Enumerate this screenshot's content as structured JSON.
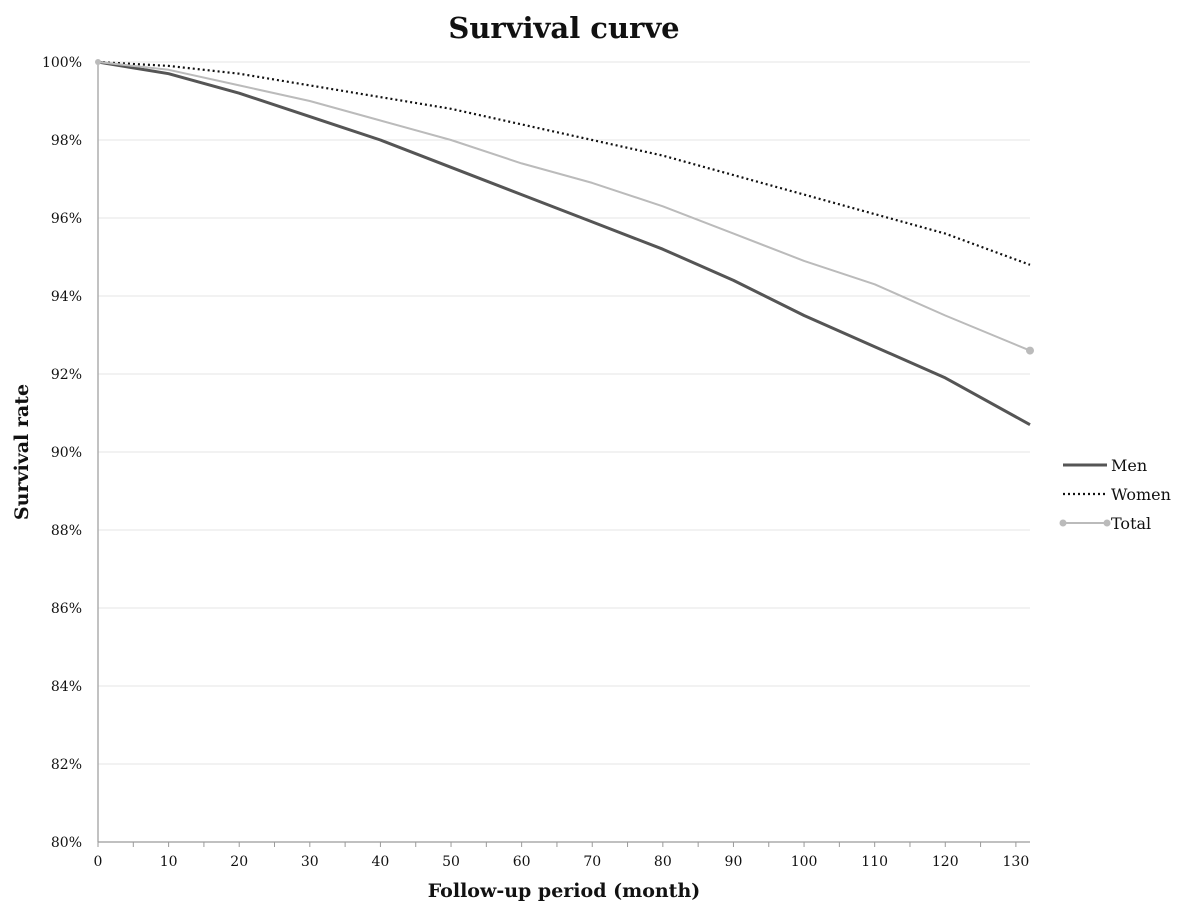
{
  "chart_data": {
    "type": "line",
    "title": "Survival curve",
    "xlabel": "Follow-up period (month)",
    "ylabel": "Survival rate",
    "xlim": [
      0,
      132
    ],
    "ylim": [
      80,
      100
    ],
    "x_ticks": [
      0,
      10,
      20,
      30,
      40,
      50,
      60,
      70,
      80,
      90,
      100,
      110,
      120,
      130
    ],
    "x_tick_labels": [
      "0",
      "10",
      "20",
      "30",
      "40",
      "50",
      "60",
      "70",
      "80",
      "90",
      "100",
      "110",
      "120",
      "130"
    ],
    "y_ticks": [
      80,
      82,
      84,
      86,
      88,
      90,
      92,
      94,
      96,
      98,
      100
    ],
    "y_tick_labels": [
      "80%",
      "82%",
      "84%",
      "86%",
      "88%",
      "90%",
      "92%",
      "94%",
      "96%",
      "98%",
      "100%"
    ],
    "grid": "horizontal",
    "legend_position": "right",
    "series": [
      {
        "name": "Men",
        "color": "#555555",
        "style": "solid",
        "x": [
          0,
          10,
          20,
          30,
          40,
          50,
          60,
          70,
          80,
          90,
          100,
          110,
          120,
          132
        ],
        "y": [
          100,
          99.7,
          99.2,
          98.6,
          98.0,
          97.3,
          96.6,
          95.9,
          95.2,
          94.4,
          93.5,
          92.7,
          91.9,
          90.7
        ]
      },
      {
        "name": "Women",
        "color": "#111111",
        "style": "dotted",
        "x": [
          0,
          10,
          20,
          30,
          40,
          50,
          60,
          70,
          80,
          90,
          100,
          110,
          120,
          132
        ],
        "y": [
          100,
          99.9,
          99.7,
          99.4,
          99.1,
          98.8,
          98.4,
          98.0,
          97.6,
          97.1,
          96.6,
          96.1,
          95.6,
          94.8
        ]
      },
      {
        "name": "Total",
        "color": "#bbbbbb",
        "style": "solid-marker",
        "x": [
          0,
          10,
          20,
          30,
          40,
          50,
          60,
          70,
          80,
          90,
          100,
          110,
          120,
          132
        ],
        "y": [
          100,
          99.8,
          99.4,
          99.0,
          98.5,
          98.0,
          97.4,
          96.9,
          96.3,
          95.6,
          94.9,
          94.3,
          93.5,
          92.6
        ]
      }
    ]
  }
}
